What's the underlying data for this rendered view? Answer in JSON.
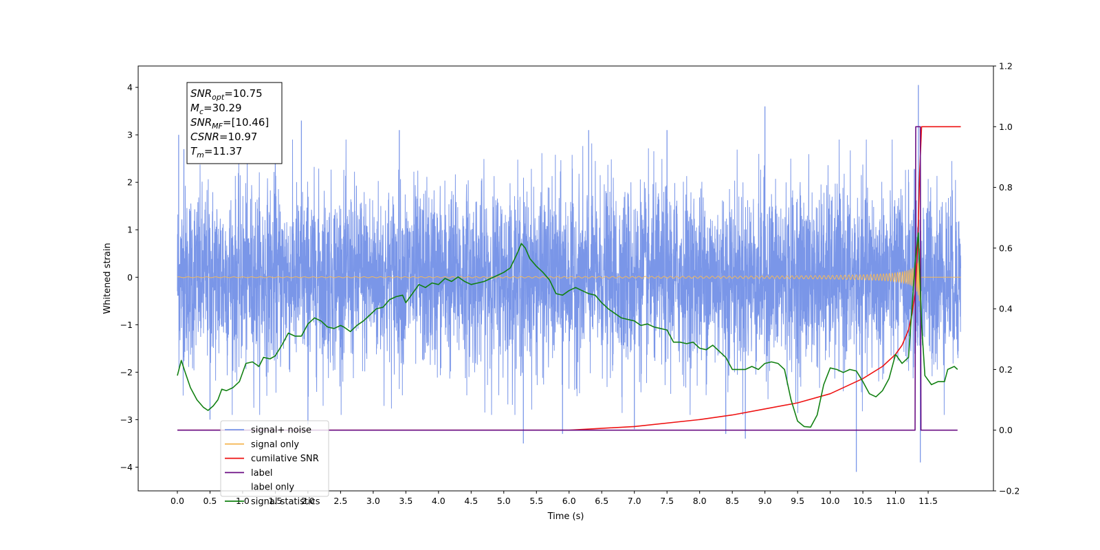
{
  "chart_data": {
    "type": "line",
    "xlabel": "Time (s)",
    "ylabel": "Whitened strain",
    "xlim": [
      -0.6,
      12.5
    ],
    "ylim": [
      -4.5,
      4.45
    ],
    "y2lim": [
      -0.2,
      1.2
    ],
    "x_ticks": [
      "0.0",
      "0.5",
      "1.0",
      "1.5",
      "2.0",
      "2.5",
      "3.0",
      "3.5",
      "4.0",
      "4.5",
      "5.0",
      "5.5",
      "6.0",
      "6.5",
      "7.0",
      "7.5",
      "8.0",
      "8.5",
      "9.0",
      "9.5",
      "10.0",
      "10.5",
      "11.0",
      "11.5"
    ],
    "y_ticks": [
      "4",
      "3",
      "2",
      "1",
      "0",
      "−1",
      "−2",
      "−3",
      "−4"
    ],
    "y2_ticks": [
      "1.2",
      "1.0",
      "0.8",
      "0.6",
      "0.4",
      "0.2",
      "0.0",
      "−0.2"
    ],
    "legend_position": "lower-left",
    "annotation": {
      "lines": [
        {
          "main": "SNR",
          "sub": "opt",
          "value": "=10.75"
        },
        {
          "main": "M",
          "sub": "c",
          "value": "=30.29"
        },
        {
          "main": "SNR",
          "sub": "MF",
          "value": "=[10.46]"
        },
        {
          "main": "CSNR",
          "sub": "",
          "value": "=10.97"
        },
        {
          "main": "T",
          "sub": "m",
          "value": "=11.37"
        }
      ]
    },
    "series": [
      {
        "name": "signal+ noise",
        "color": "#7a96e8",
        "axis": "left",
        "description": "dense noise, amplitude ~±2, peaks from −4.1 to 4.05",
        "spikes": [
          [
            0.02,
            3.0
          ],
          [
            0.1,
            2.7
          ],
          [
            0.5,
            -3.0
          ],
          [
            1.5,
            2.9
          ],
          [
            2.0,
            -3.1
          ],
          [
            1.9,
            3.3
          ],
          [
            3.4,
            3.1
          ],
          [
            5.3,
            -3.5
          ],
          [
            5.9,
            -3.3
          ],
          [
            6.3,
            3.1
          ],
          [
            7.0,
            -3.2
          ],
          [
            7.5,
            3.1
          ],
          [
            8.4,
            -3.3
          ],
          [
            8.7,
            -3.4
          ],
          [
            9.0,
            3.6
          ],
          [
            10.4,
            -4.1
          ],
          [
            11.35,
            4.05
          ],
          [
            11.38,
            -3.9
          ]
        ]
      },
      {
        "name": "signal only",
        "color": "#f5b95a",
        "axis": "left",
        "description": "chirp near 0, amplitude growing from ~0.02 to ~0.9 at merger"
      },
      {
        "name": "cumilative SNR",
        "color": "#ee1111",
        "axis": "right",
        "points": [
          [
            0.0,
            0.0
          ],
          [
            6.0,
            0.0
          ],
          [
            7.0,
            0.012
          ],
          [
            8.0,
            0.035
          ],
          [
            8.5,
            0.05
          ],
          [
            9.0,
            0.07
          ],
          [
            9.5,
            0.09
          ],
          [
            10.0,
            0.12
          ],
          [
            10.5,
            0.17
          ],
          [
            10.8,
            0.21
          ],
          [
            11.0,
            0.25
          ],
          [
            11.1,
            0.28
          ],
          [
            11.2,
            0.33
          ],
          [
            11.25,
            0.38
          ],
          [
            11.3,
            0.45
          ],
          [
            11.34,
            0.6
          ],
          [
            11.37,
            0.85
          ],
          [
            11.4,
            1.0
          ],
          [
            12.0,
            1.0
          ]
        ]
      },
      {
        "name": "label",
        "color": "#6a0d83",
        "axis": "right",
        "points": [
          [
            0.0,
            0.0
          ],
          [
            11.3,
            0.0
          ],
          [
            11.31,
            1.0
          ],
          [
            11.38,
            1.0
          ],
          [
            11.39,
            0.0
          ],
          [
            11.95,
            0.0
          ]
        ]
      },
      {
        "name": "label only",
        "color": "#cccccc",
        "axis": "right",
        "description": "hidden behind the label trace"
      },
      {
        "name": "signal statistics",
        "color": "#118011",
        "axis": "right",
        "points": [
          [
            0.0,
            0.18
          ],
          [
            0.06,
            0.23
          ],
          [
            0.12,
            0.19
          ],
          [
            0.2,
            0.14
          ],
          [
            0.3,
            0.1
          ],
          [
            0.4,
            0.075
          ],
          [
            0.47,
            0.065
          ],
          [
            0.55,
            0.08
          ],
          [
            0.62,
            0.1
          ],
          [
            0.68,
            0.135
          ],
          [
            0.75,
            0.13
          ],
          [
            0.85,
            0.14
          ],
          [
            0.95,
            0.16
          ],
          [
            1.05,
            0.22
          ],
          [
            1.15,
            0.225
          ],
          [
            1.25,
            0.21
          ],
          [
            1.32,
            0.24
          ],
          [
            1.42,
            0.235
          ],
          [
            1.5,
            0.245
          ],
          [
            1.6,
            0.28
          ],
          [
            1.7,
            0.32
          ],
          [
            1.8,
            0.31
          ],
          [
            1.9,
            0.31
          ],
          [
            2.0,
            0.35
          ],
          [
            2.1,
            0.37
          ],
          [
            2.2,
            0.36
          ],
          [
            2.3,
            0.34
          ],
          [
            2.4,
            0.335
          ],
          [
            2.5,
            0.345
          ],
          [
            2.55,
            0.34
          ],
          [
            2.65,
            0.325
          ],
          [
            2.75,
            0.345
          ],
          [
            2.85,
            0.36
          ],
          [
            2.95,
            0.38
          ],
          [
            3.05,
            0.4
          ],
          [
            3.15,
            0.405
          ],
          [
            3.25,
            0.43
          ],
          [
            3.35,
            0.44
          ],
          [
            3.45,
            0.445
          ],
          [
            3.5,
            0.42
          ],
          [
            3.6,
            0.45
          ],
          [
            3.7,
            0.48
          ],
          [
            3.8,
            0.47
          ],
          [
            3.9,
            0.485
          ],
          [
            4.0,
            0.48
          ],
          [
            4.1,
            0.5
          ],
          [
            4.2,
            0.49
          ],
          [
            4.3,
            0.505
          ],
          [
            4.4,
            0.49
          ],
          [
            4.5,
            0.48
          ],
          [
            4.6,
            0.485
          ],
          [
            4.7,
            0.49
          ],
          [
            4.8,
            0.5
          ],
          [
            4.9,
            0.51
          ],
          [
            5.0,
            0.52
          ],
          [
            5.1,
            0.535
          ],
          [
            5.2,
            0.58
          ],
          [
            5.27,
            0.615
          ],
          [
            5.33,
            0.6
          ],
          [
            5.4,
            0.565
          ],
          [
            5.5,
            0.54
          ],
          [
            5.6,
            0.52
          ],
          [
            5.7,
            0.495
          ],
          [
            5.8,
            0.45
          ],
          [
            5.9,
            0.445
          ],
          [
            6.0,
            0.46
          ],
          [
            6.1,
            0.47
          ],
          [
            6.2,
            0.46
          ],
          [
            6.3,
            0.45
          ],
          [
            6.4,
            0.445
          ],
          [
            6.5,
            0.42
          ],
          [
            6.6,
            0.4
          ],
          [
            6.7,
            0.385
          ],
          [
            6.8,
            0.37
          ],
          [
            6.9,
            0.365
          ],
          [
            7.0,
            0.36
          ],
          [
            7.1,
            0.345
          ],
          [
            7.2,
            0.35
          ],
          [
            7.3,
            0.34
          ],
          [
            7.4,
            0.335
          ],
          [
            7.5,
            0.33
          ],
          [
            7.6,
            0.29
          ],
          [
            7.7,
            0.29
          ],
          [
            7.8,
            0.285
          ],
          [
            7.9,
            0.29
          ],
          [
            8.0,
            0.27
          ],
          [
            8.1,
            0.265
          ],
          [
            8.2,
            0.28
          ],
          [
            8.3,
            0.26
          ],
          [
            8.4,
            0.24
          ],
          [
            8.5,
            0.2
          ],
          [
            8.6,
            0.2
          ],
          [
            8.7,
            0.2
          ],
          [
            8.8,
            0.21
          ],
          [
            8.9,
            0.2
          ],
          [
            9.0,
            0.22
          ],
          [
            9.1,
            0.225
          ],
          [
            9.2,
            0.22
          ],
          [
            9.3,
            0.2
          ],
          [
            9.4,
            0.1
          ],
          [
            9.5,
            0.03
          ],
          [
            9.6,
            0.012
          ],
          [
            9.7,
            0.01
          ],
          [
            9.8,
            0.05
          ],
          [
            9.9,
            0.15
          ],
          [
            10.0,
            0.205
          ],
          [
            10.1,
            0.2
          ],
          [
            10.2,
            0.19
          ],
          [
            10.3,
            0.2
          ],
          [
            10.4,
            0.195
          ],
          [
            10.5,
            0.16
          ],
          [
            10.6,
            0.12
          ],
          [
            10.7,
            0.11
          ],
          [
            10.8,
            0.13
          ],
          [
            10.9,
            0.17
          ],
          [
            11.0,
            0.25
          ],
          [
            11.1,
            0.22
          ],
          [
            11.2,
            0.24
          ],
          [
            11.3,
            0.55
          ],
          [
            11.35,
            0.65
          ],
          [
            11.4,
            0.35
          ],
          [
            11.45,
            0.18
          ],
          [
            11.55,
            0.15
          ],
          [
            11.65,
            0.16
          ],
          [
            11.75,
            0.16
          ],
          [
            11.8,
            0.2
          ],
          [
            11.9,
            0.21
          ],
          [
            11.95,
            0.2
          ]
        ]
      }
    ]
  }
}
